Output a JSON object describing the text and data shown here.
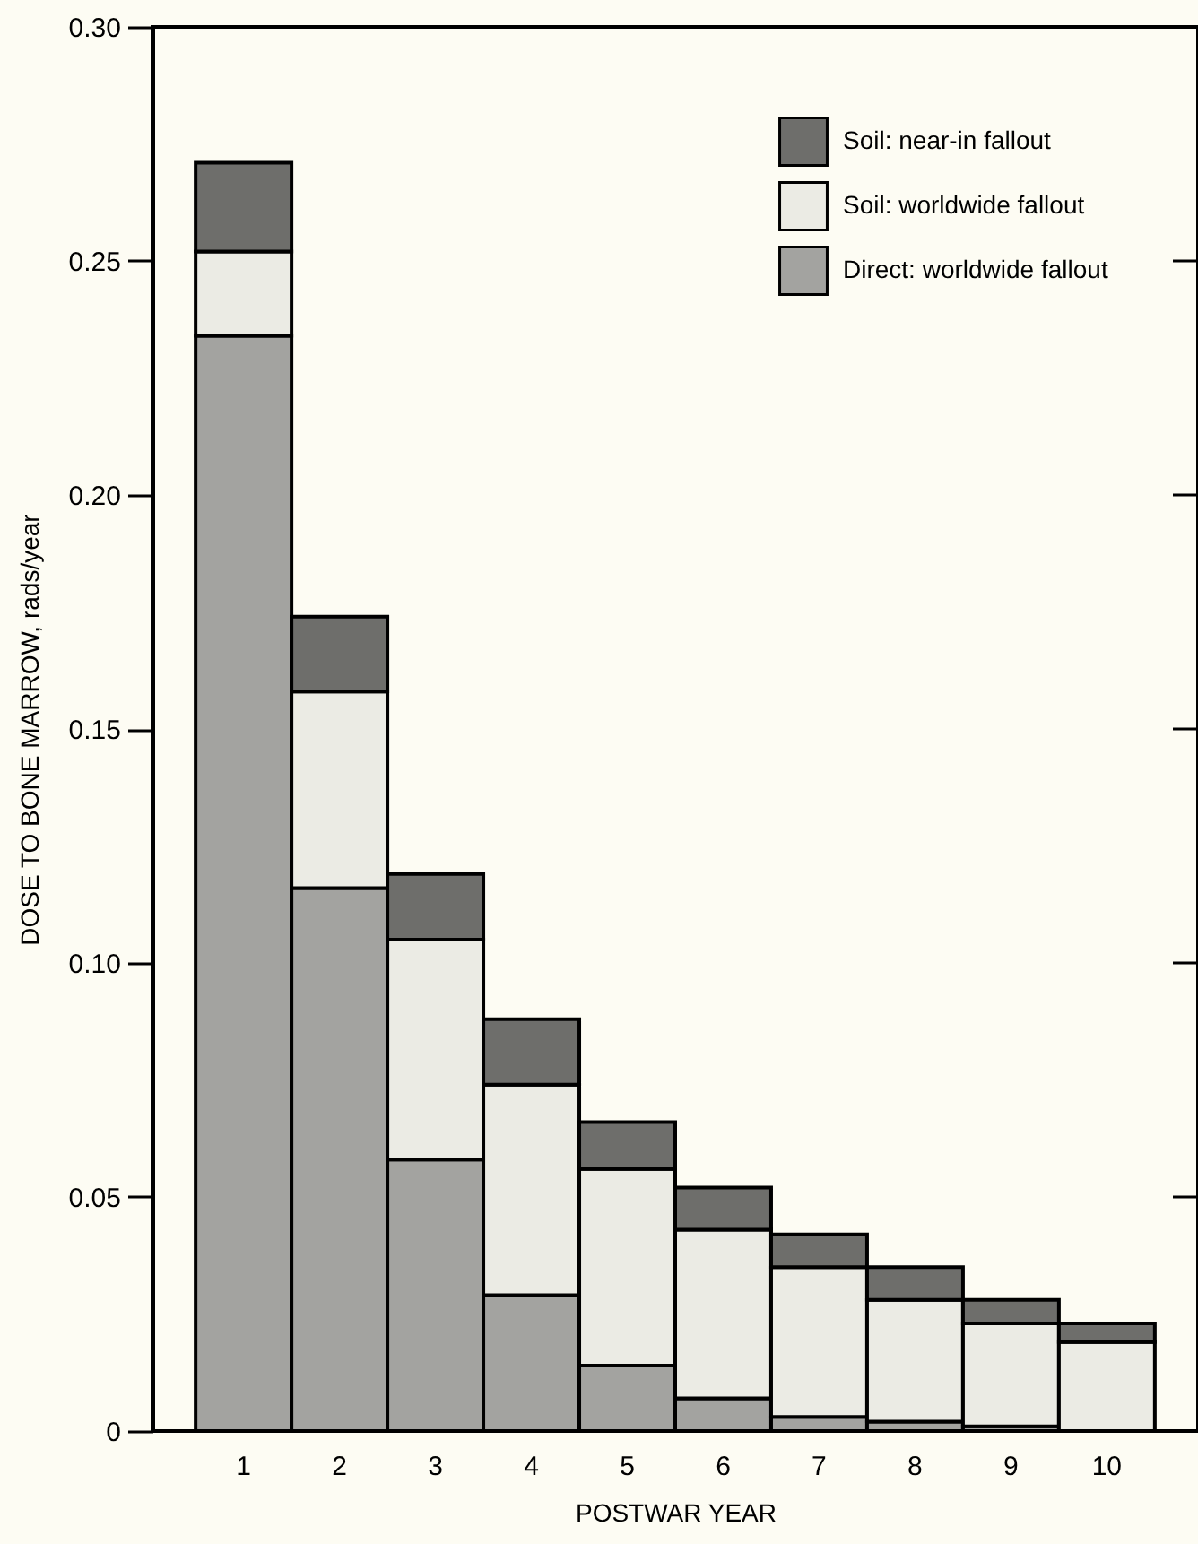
{
  "chart_data": {
    "type": "bar",
    "stacked": true,
    "xlabel": "POSTWAR YEAR",
    "ylabel": "DOSE TO BONE MARROW, rads/year",
    "categories": [
      "1",
      "2",
      "3",
      "4",
      "5",
      "6",
      "7",
      "8",
      "9",
      "10"
    ],
    "series": [
      {
        "name": "Direct: worldwide fallout",
        "color": "#a3a3a0",
        "values": [
          0.234,
          0.116,
          0.058,
          0.029,
          0.014,
          0.007,
          0.003,
          0.002,
          0.001,
          0
        ]
      },
      {
        "name": "Soil: worldwide fallout",
        "color": "#ebebe4",
        "values": [
          0.018,
          0.042,
          0.047,
          0.045,
          0.042,
          0.036,
          0.032,
          0.026,
          0.022,
          0.019
        ]
      },
      {
        "name": "Soil: near-in fallout",
        "color": "#6e6e6b",
        "values": [
          0.019,
          0.016,
          0.014,
          0.014,
          0.01,
          0.009,
          0.007,
          0.007,
          0.005,
          0.004
        ]
      }
    ],
    "ylim": [
      0,
      0.3
    ],
    "yticks": [
      0,
      0.05,
      {
        "value": 0.1,
        "label": "0.10"
      },
      0.15,
      {
        "value": 0.2,
        "label": "0.20"
      },
      0.25,
      {
        "value": 0.3,
        "label": "0.30"
      }
    ],
    "legend": "top right",
    "grid": false
  }
}
